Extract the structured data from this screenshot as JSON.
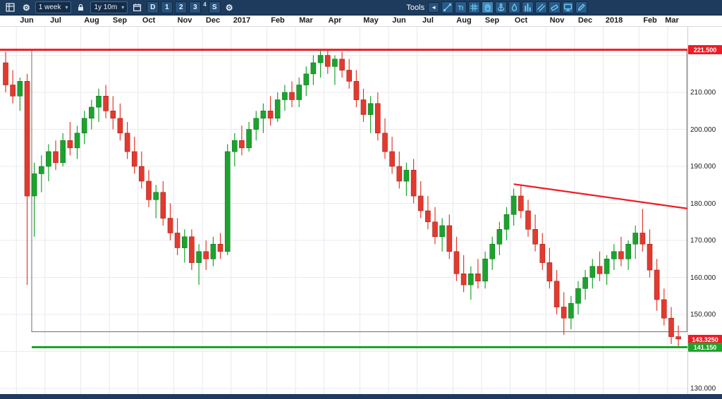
{
  "toolbar": {
    "timeframe_value": "1 week",
    "range_value": "1y 10m",
    "period_buttons": [
      "D",
      "1",
      "2",
      "3"
    ],
    "superscript_button": "4",
    "settings_letter": "S",
    "tools_label": "Tools",
    "collapse_arrow": "◄",
    "caret": "▾",
    "gear_glyph": "⚙",
    "left_icons": [
      "layout-grid-icon",
      "gear-icon",
      "lock-icon",
      "calendar-icon",
      "gear-icon"
    ],
    "tools": [
      {
        "name": "trendline-tool",
        "icon": "trendline",
        "active": false
      },
      {
        "name": "text-tool",
        "icon": "text",
        "active": false
      },
      {
        "name": "grid-tool",
        "icon": "grid",
        "active": false
      },
      {
        "name": "hand-tool",
        "icon": "hand",
        "active": true
      },
      {
        "name": "anchor-tool",
        "icon": "anchor",
        "active": false
      },
      {
        "name": "droplet-tool",
        "icon": "droplet",
        "active": false
      },
      {
        "name": "bars-tool",
        "icon": "bars",
        "active": false
      },
      {
        "name": "channel-tool",
        "icon": "channel",
        "active": false
      },
      {
        "name": "eraser-tool",
        "icon": "eraser",
        "active": false
      },
      {
        "name": "screen-tool",
        "icon": "screen",
        "active": false
      },
      {
        "name": "pencil-tool",
        "icon": "pencil",
        "active": false
      }
    ]
  },
  "chart_data": {
    "type": "candlestick",
    "timeframe": "1 week",
    "visible_range": "1y 10m",
    "months": [
      {
        "label": "Jun",
        "start": 2
      },
      {
        "label": "Jul",
        "start": 6
      },
      {
        "label": "Aug",
        "start": 11
      },
      {
        "label": "Sep",
        "start": 15
      },
      {
        "label": "Oct",
        "start": 19
      },
      {
        "label": "Nov",
        "start": 24
      },
      {
        "label": "Dec",
        "start": 28
      },
      {
        "label": "2017",
        "start": 32
      },
      {
        "label": "Feb",
        "start": 37
      },
      {
        "label": "Mar",
        "start": 41
      },
      {
        "label": "Apr",
        "start": 45
      },
      {
        "label": "May",
        "start": 50
      },
      {
        "label": "Jun",
        "start": 54
      },
      {
        "label": "Jul",
        "start": 58
      },
      {
        "label": "Aug",
        "start": 63
      },
      {
        "label": "Sep",
        "start": 67
      },
      {
        "label": "Oct",
        "start": 71
      },
      {
        "label": "Nov",
        "start": 76
      },
      {
        "label": "Dec",
        "start": 80
      },
      {
        "label": "2018",
        "start": 84
      },
      {
        "label": "Feb",
        "start": 89
      },
      {
        "label": "Mar",
        "start": 93
      }
    ],
    "y_axis": {
      "min": 130,
      "max": 222,
      "tick_step": 10,
      "gridlines": [
        130,
        140,
        150,
        160,
        170,
        180,
        190,
        200,
        210,
        220
      ],
      "labels": [
        {
          "value": 210,
          "text": "210.000"
        },
        {
          "value": 200,
          "text": "200.000"
        },
        {
          "value": 190,
          "text": "190.000"
        },
        {
          "value": 180,
          "text": "180.000"
        },
        {
          "value": 170,
          "text": "170.000"
        },
        {
          "value": 160,
          "text": "160.000"
        },
        {
          "value": 150,
          "text": "150.000"
        },
        {
          "value": 130,
          "text": "130.000"
        }
      ]
    },
    "colors": {
      "up": "#1ca32e",
      "down": "#e23a2e",
      "up_border": "#0e7a1e",
      "down_border": "#a8241c",
      "grid_h": "#ebebf1",
      "grid_v": "#e6e8ef"
    },
    "overlays": {
      "resistance_line": {
        "price": 221.5,
        "label": "221.500",
        "color": "#ee1c25"
      },
      "support_line": {
        "price": 141.15,
        "label": "141.150",
        "color": "#1fa32b"
      },
      "current_price": {
        "price": 143.325,
        "label": "143.3250",
        "color": "#ee1c25"
      },
      "trendline": {
        "week1": 71,
        "price1": 185.2,
        "week2": 95.3,
        "price2": 178.6,
        "color": "#ee1c25"
      },
      "rectangle": {
        "week_start": 3.65,
        "week_end": 95.2,
        "price_top": 221.5,
        "price_bottom": 145.3,
        "color": "#6e6e6e"
      }
    },
    "candles": [
      [
        218,
        221,
        210,
        212
      ],
      [
        212,
        216,
        207,
        209
      ],
      [
        209,
        214,
        205,
        213
      ],
      [
        213,
        215,
        158,
        182
      ],
      [
        182,
        191,
        171,
        188
      ],
      [
        188,
        193,
        183,
        190
      ],
      [
        190,
        196,
        186,
        194
      ],
      [
        194,
        197,
        189,
        191
      ],
      [
        191,
        199,
        190,
        197
      ],
      [
        197,
        202,
        193,
        195
      ],
      [
        195,
        201,
        192,
        199
      ],
      [
        199,
        205,
        196,
        203
      ],
      [
        203,
        208,
        200,
        206
      ],
      [
        206,
        211,
        202,
        209
      ],
      [
        209,
        212,
        203,
        205
      ],
      [
        205,
        209,
        200,
        203
      ],
      [
        203,
        207,
        197,
        199
      ],
      [
        199,
        202,
        192,
        194
      ],
      [
        194,
        198,
        188,
        190
      ],
      [
        190,
        194,
        184,
        186
      ],
      [
        186,
        189,
        179,
        181
      ],
      [
        181,
        185,
        176,
        183
      ],
      [
        183,
        186,
        174,
        176
      ],
      [
        176,
        180,
        170,
        172
      ],
      [
        172,
        176,
        166,
        168
      ],
      [
        168,
        173,
        164,
        171
      ],
      [
        171,
        173,
        162,
        164
      ],
      [
        164,
        169,
        158,
        167
      ],
      [
        167,
        170,
        162,
        165
      ],
      [
        165,
        171,
        163,
        169
      ],
      [
        169,
        172,
        165,
        167
      ],
      [
        167,
        196,
        166,
        194
      ],
      [
        194,
        199,
        190,
        197
      ],
      [
        197,
        201,
        193,
        195
      ],
      [
        195,
        202,
        194,
        200
      ],
      [
        200,
        205,
        197,
        203
      ],
      [
        203,
        207,
        199,
        205
      ],
      [
        205,
        209,
        201,
        203
      ],
      [
        203,
        210,
        202,
        208
      ],
      [
        208,
        212,
        205,
        210
      ],
      [
        210,
        213,
        206,
        208
      ],
      [
        208,
        214,
        206,
        212
      ],
      [
        212,
        217,
        209,
        215
      ],
      [
        215,
        220,
        212,
        218
      ],
      [
        218,
        221.5,
        214,
        220
      ],
      [
        220,
        221.5,
        215,
        217
      ],
      [
        217,
        220,
        212,
        219
      ],
      [
        219,
        221,
        214,
        216
      ],
      [
        216,
        219,
        211,
        213
      ],
      [
        213,
        216,
        206,
        208
      ],
      [
        208,
        211,
        202,
        204
      ],
      [
        204,
        209,
        199,
        207
      ],
      [
        207,
        210,
        197,
        199
      ],
      [
        199,
        203,
        192,
        194
      ],
      [
        194,
        198,
        188,
        190
      ],
      [
        190,
        194,
        184,
        186
      ],
      [
        186,
        191,
        182,
        189
      ],
      [
        189,
        192,
        180,
        182
      ],
      [
        182,
        186,
        176,
        178
      ],
      [
        178,
        182,
        173,
        175
      ],
      [
        175,
        179,
        169,
        171
      ],
      [
        171,
        176,
        167,
        174
      ],
      [
        174,
        177,
        165,
        167
      ],
      [
        167,
        171,
        159,
        161
      ],
      [
        161,
        166,
        156,
        158
      ],
      [
        158,
        163,
        154,
        161
      ],
      [
        161,
        165,
        157,
        159
      ],
      [
        159,
        167,
        157,
        165
      ],
      [
        165,
        171,
        162,
        169
      ],
      [
        169,
        175,
        166,
        173
      ],
      [
        173,
        179,
        170,
        177
      ],
      [
        177,
        184,
        174,
        182
      ],
      [
        182,
        185,
        176,
        178
      ],
      [
        178,
        181,
        171,
        173
      ],
      [
        173,
        177,
        167,
        169
      ],
      [
        169,
        172,
        162,
        164
      ],
      [
        164,
        168,
        157,
        159
      ],
      [
        159,
        162,
        150,
        152
      ],
      [
        152,
        156,
        144.5,
        149
      ],
      [
        149,
        155,
        146,
        153
      ],
      [
        153,
        159,
        150,
        157
      ],
      [
        157,
        162,
        154,
        160
      ],
      [
        160,
        165,
        157,
        163
      ],
      [
        163,
        167,
        159,
        161
      ],
      [
        161,
        166,
        158,
        165
      ],
      [
        165,
        169,
        162,
        167
      ],
      [
        167,
        171,
        163,
        165
      ],
      [
        165,
        170,
        162,
        169
      ],
      [
        169,
        174,
        165,
        172
      ],
      [
        172,
        178.5,
        167,
        169
      ],
      [
        169,
        173,
        160,
        162
      ],
      [
        162,
        165,
        151,
        154
      ],
      [
        154,
        157,
        147,
        149
      ],
      [
        149,
        152,
        142,
        144
      ],
      [
        144,
        147,
        141.2,
        143.325
      ]
    ]
  }
}
